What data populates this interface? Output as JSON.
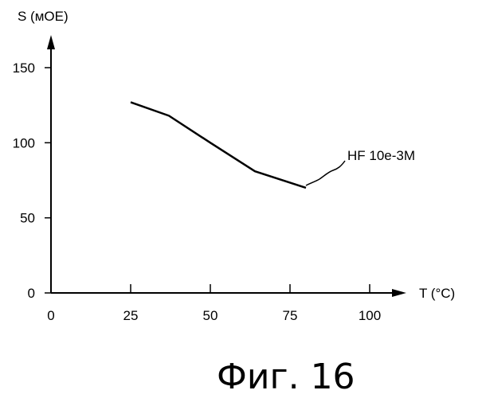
{
  "chart_data": {
    "type": "line",
    "xlabel": "T (°C)",
    "ylabel": "S (мОЕ)",
    "x_ticks": [
      0,
      25,
      50,
      75,
      100
    ],
    "y_ticks": [
      0,
      50,
      100,
      150
    ],
    "xlim": [
      0,
      100
    ],
    "ylim": [
      0,
      150
    ],
    "grid": false,
    "series": [
      {
        "name": "HF 10e-3M",
        "x": [
          25,
          37,
          50,
          64,
          80
        ],
        "y": [
          127,
          118,
          100,
          81,
          70
        ]
      }
    ],
    "caption": "Фиг. 16"
  },
  "colors": {
    "line": "#000000",
    "background": "#ffffff"
  }
}
